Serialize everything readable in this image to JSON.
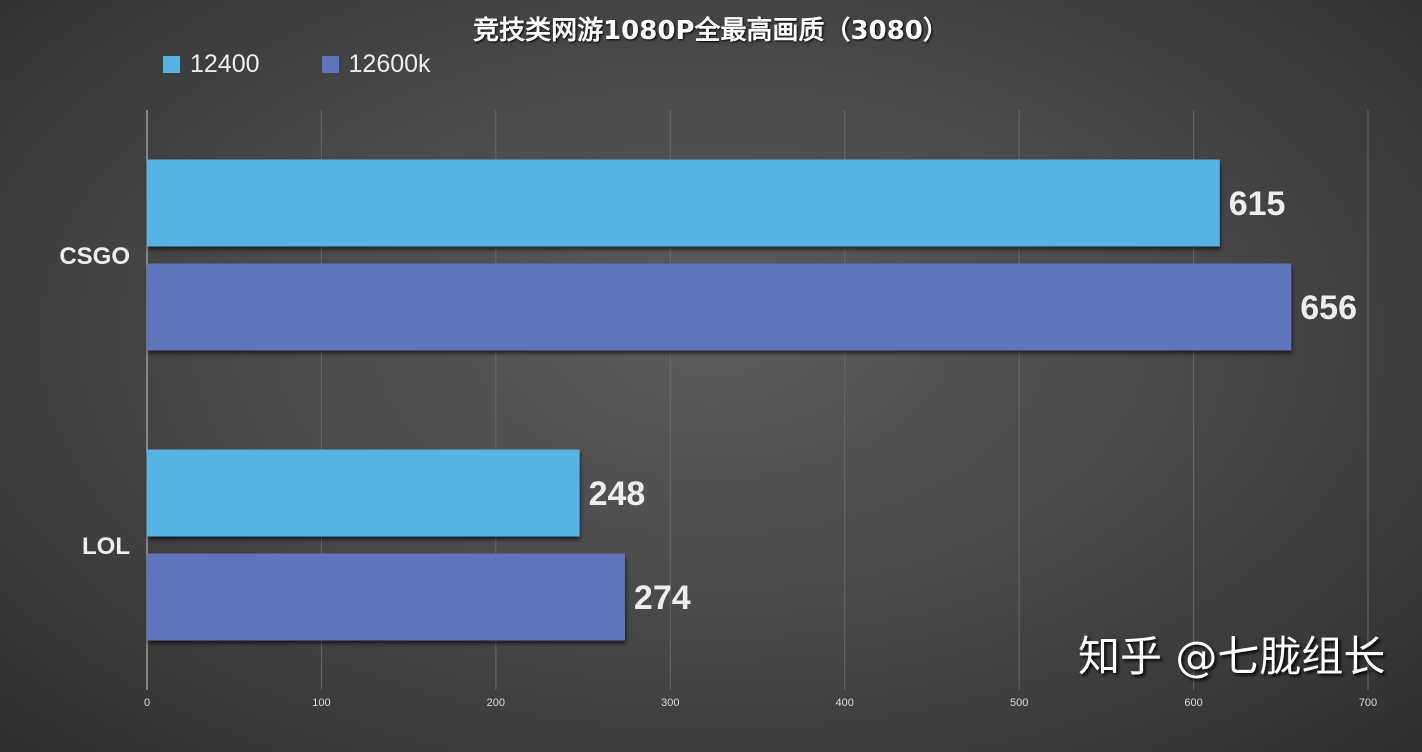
{
  "chart_data": {
    "type": "bar",
    "orientation": "horizontal",
    "title": "竞技类网游1080P全最高画质（3080）",
    "categories": [
      "CSGO",
      "LOL"
    ],
    "series": [
      {
        "name": "12400",
        "values": [
          615,
          248
        ],
        "color": "#56b4e4"
      },
      {
        "name": "12600k",
        "values": [
          656,
          274
        ],
        "color": "#5f74bb"
      }
    ],
    "xlim": [
      0,
      700
    ],
    "xticks": [
      0,
      100,
      200,
      300,
      400,
      500,
      600,
      700
    ],
    "grid": true,
    "legend": "top-left",
    "xlabel": "",
    "ylabel": ""
  },
  "watermark": "知乎 @七胧组长"
}
